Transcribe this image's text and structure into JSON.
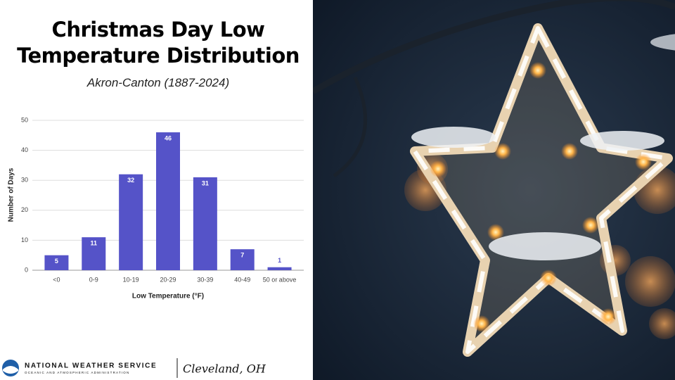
{
  "chart_data": {
    "type": "bar",
    "title": "Christmas Day Low Temperature Distribution",
    "subtitle": "Akron-Canton (1887-2024)",
    "xlabel": "Low Temperature (°F)",
    "ylabel": "Number of Days",
    "categories": [
      "<0",
      "0-9",
      "10-19",
      "20-29",
      "30-39",
      "40-49",
      "50 or above"
    ],
    "values": [
      5,
      11,
      32,
      46,
      31,
      7,
      1
    ],
    "color": "#5553c8",
    "ylim": [
      0,
      50
    ],
    "yticks": [
      0,
      10,
      20,
      30,
      40,
      50
    ],
    "grid": true
  },
  "footer": {
    "org": "NATIONAL WEATHER SERVICE",
    "suborg": "OCEANIC AND ATMOSPHERIC ADMINISTRATION",
    "office": "Cleveland, OH"
  }
}
